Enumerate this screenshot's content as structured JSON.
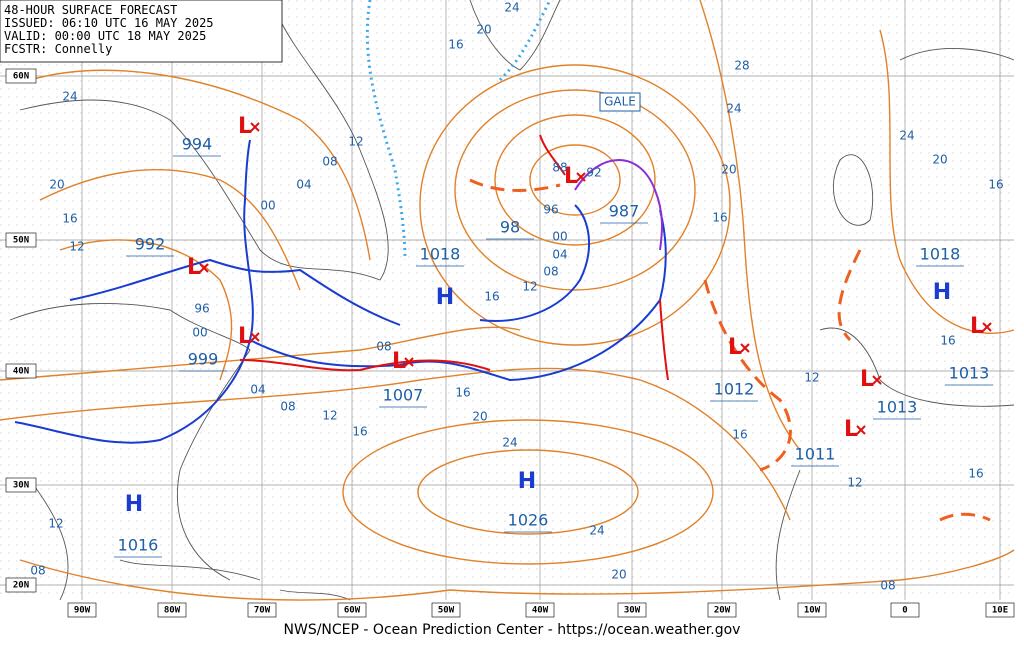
{
  "header": {
    "lines": [
      "48-HOUR SURFACE FORECAST",
      "ISSUED: 06:10 UTC 16 MAY 2025",
      "VALID:  00:00 UTC 18 MAY 2025",
      "FCSTR:  Connelly"
    ]
  },
  "footer": "NWS/NCEP - Ocean Prediction Center - https://ocean.weather.gov",
  "lat_labels": [
    "60N",
    "50N",
    "40N",
    "30N",
    "20N"
  ],
  "lon_labels": [
    "90W",
    "80W",
    "70W",
    "60W",
    "50W",
    "40W",
    "30W",
    "20W",
    "10W",
    "0",
    "10E"
  ],
  "warnings": [
    "GALE"
  ],
  "highs": [
    "H",
    "H",
    "H",
    "H"
  ],
  "lows": [
    "L",
    "L",
    "L",
    "L",
    "L",
    "L",
    "L",
    "L",
    "L"
  ],
  "central_pressures": [
    "994",
    "992",
    "999",
    "1018",
    "1007",
    "1026",
    "1016",
    "987",
    "1012",
    "1011",
    "1013",
    "1013",
    "1018",
    "98"
  ],
  "isobar_labels": [
    "24",
    "20",
    "16",
    "12",
    "08",
    "04",
    "00",
    "96",
    "00",
    "04",
    "08",
    "12",
    "16",
    "20",
    "24",
    "16",
    "08",
    "12",
    "20",
    "16",
    "24",
    "28",
    "24",
    "20",
    "16",
    "16",
    "12",
    "08",
    "04",
    "00",
    "96",
    "88",
    "92",
    "24",
    "20",
    "16",
    "16",
    "12",
    "12",
    "16",
    "16",
    "24",
    "20",
    "08",
    "12",
    "08"
  ]
}
